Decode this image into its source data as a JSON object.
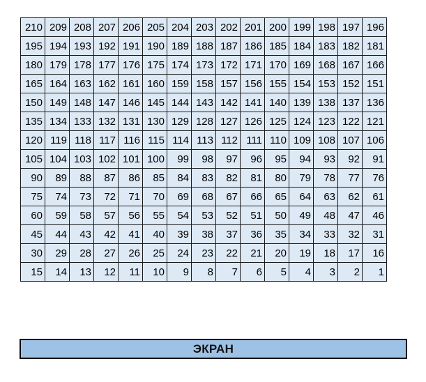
{
  "seat_map": {
    "rows": [
      [
        "210",
        "209",
        "208",
        "207",
        "206",
        "205",
        "204",
        "203",
        "202",
        "201",
        "200",
        "199",
        "198",
        "197",
        "196"
      ],
      [
        "195",
        "194",
        "193",
        "192",
        "191",
        "190",
        "189",
        "188",
        "187",
        "186",
        "185",
        "184",
        "183",
        "182",
        "181"
      ],
      [
        "180",
        "179",
        "178",
        "177",
        "176",
        "175",
        "174",
        "173",
        "172",
        "171",
        "170",
        "169",
        "168",
        "167",
        "166"
      ],
      [
        "165",
        "164",
        "163",
        "162",
        "161",
        "160",
        "159",
        "158",
        "157",
        "156",
        "155",
        "154",
        "153",
        "152",
        "151"
      ],
      [
        "150",
        "149",
        "148",
        "147",
        "146",
        "145",
        "144",
        "143",
        "142",
        "141",
        "140",
        "139",
        "138",
        "137",
        "136"
      ],
      [
        "135",
        "134",
        "133",
        "132",
        "131",
        "130",
        "129",
        "128",
        "127",
        "126",
        "125",
        "124",
        "123",
        "122",
        "121"
      ],
      [
        "120",
        "119",
        "118",
        "117",
        "116",
        "115",
        "114",
        "113",
        "112",
        "111",
        "110",
        "109",
        "108",
        "107",
        "106"
      ],
      [
        "105",
        "104",
        "103",
        "102",
        "101",
        "100",
        "99",
        "98",
        "97",
        "96",
        "95",
        "94",
        "93",
        "92",
        "91"
      ],
      [
        "90",
        "89",
        "88",
        "87",
        "86",
        "85",
        "84",
        "83",
        "82",
        "81",
        "80",
        "79",
        "78",
        "77",
        "76"
      ],
      [
        "75",
        "74",
        "73",
        "72",
        "71",
        "70",
        "69",
        "68",
        "67",
        "66",
        "65",
        "64",
        "63",
        "62",
        "61"
      ],
      [
        "60",
        "59",
        "58",
        "57",
        "56",
        "55",
        "54",
        "53",
        "52",
        "51",
        "50",
        "49",
        "48",
        "47",
        "46"
      ],
      [
        "45",
        "44",
        "43",
        "42",
        "41",
        "40",
        "39",
        "38",
        "37",
        "36",
        "35",
        "34",
        "33",
        "32",
        "31"
      ],
      [
        "30",
        "29",
        "28",
        "27",
        "26",
        "25",
        "24",
        "23",
        "22",
        "21",
        "20",
        "19",
        "18",
        "17",
        "16"
      ],
      [
        "15",
        "14",
        "13",
        "12",
        "11",
        "10",
        "9",
        "8",
        "7",
        "6",
        "5",
        "4",
        "3",
        "2",
        "1"
      ]
    ]
  },
  "screen": {
    "label": "ЭКРАН"
  },
  "colors": {
    "seat_fill": "#dde9f5",
    "screen_fill": "#9dc2e6",
    "border": "#000000"
  }
}
